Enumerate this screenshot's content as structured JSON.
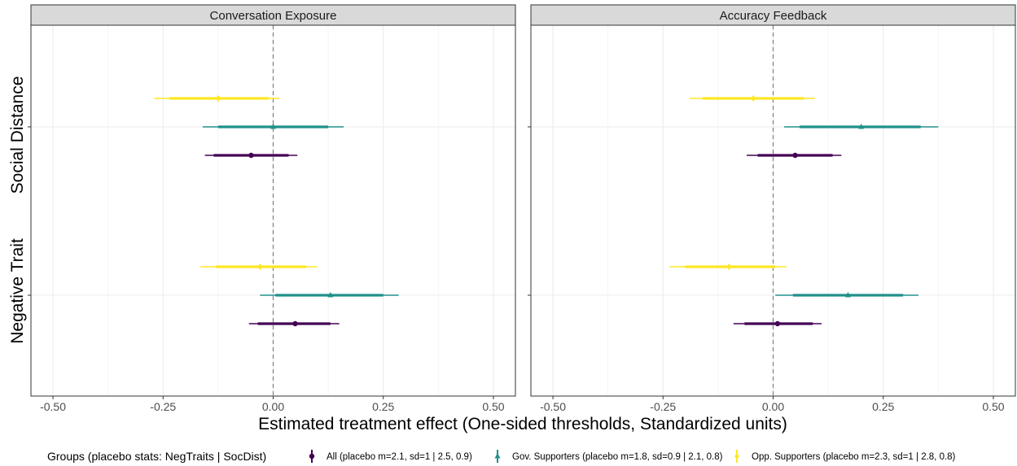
{
  "chart_data": {
    "type": "forest",
    "xlabel": "Estimated treatment effect (One-sided thresholds, Standardized units)",
    "xlim": [
      -0.55,
      0.55
    ],
    "x_ticks": [
      -0.5,
      -0.25,
      0.0,
      0.25,
      0.5
    ],
    "x_tick_labels": [
      "-0.50",
      "-0.25",
      "0.00",
      "0.25",
      "0.50"
    ],
    "reference_line": 0,
    "grid": true,
    "y_categories": [
      "Social Distance",
      "Negative Trait"
    ],
    "legend": {
      "position": "bottom",
      "title": "Groups (placebo stats: NegTraits | SocDist)",
      "entries": [
        {
          "group": "All",
          "label": "All (placebo m=2.1, sd=1 | 2.5, 0.9)",
          "color": "#440154",
          "shape": "circle"
        },
        {
          "group": "Gov",
          "label": "Gov. Supporters (placebo m=1.8, sd=0.9 | 2.1, 0.8)",
          "color": "#21908C",
          "shape": "triangle"
        },
        {
          "group": "Opp",
          "label": "Opp. Supporters (placebo m=2.3, sd=1 | 2.8, 0.8)",
          "color": "#FDE725",
          "shape": "diamond"
        }
      ]
    },
    "panels": [
      {
        "title": "Conversation Exposure",
        "estimates": [
          {
            "outcome": "Social Distance",
            "group": "Opp",
            "est": -0.125,
            "ci90": [
              -0.235,
              -0.01
            ],
            "ci95": [
              -0.27,
              0.015
            ]
          },
          {
            "outcome": "Social Distance",
            "group": "Gov",
            "est": 0.0,
            "ci90": [
              -0.125,
              0.125
            ],
            "ci95": [
              -0.16,
              0.16
            ]
          },
          {
            "outcome": "Social Distance",
            "group": "All",
            "est": -0.05,
            "ci90": [
              -0.135,
              0.035
            ],
            "ci95": [
              -0.155,
              0.055
            ]
          },
          {
            "outcome": "Negative Trait",
            "group": "Opp",
            "est": -0.03,
            "ci90": [
              -0.13,
              0.075
            ],
            "ci95": [
              -0.165,
              0.1
            ]
          },
          {
            "outcome": "Negative Trait",
            "group": "Gov",
            "est": 0.13,
            "ci90": [
              0.005,
              0.25
            ],
            "ci95": [
              -0.03,
              0.285
            ]
          },
          {
            "outcome": "Negative Trait",
            "group": "All",
            "est": 0.05,
            "ci90": [
              -0.035,
              0.13
            ],
            "ci95": [
              -0.055,
              0.15
            ]
          }
        ]
      },
      {
        "title": "Accuracy Feedback",
        "estimates": [
          {
            "outcome": "Social Distance",
            "group": "Opp",
            "est": -0.045,
            "ci90": [
              -0.16,
              0.07
            ],
            "ci95": [
              -0.19,
              0.095
            ]
          },
          {
            "outcome": "Social Distance",
            "group": "Gov",
            "est": 0.2,
            "ci90": [
              0.06,
              0.335
            ],
            "ci95": [
              0.025,
              0.375
            ]
          },
          {
            "outcome": "Social Distance",
            "group": "All",
            "est": 0.05,
            "ci90": [
              -0.035,
              0.135
            ],
            "ci95": [
              -0.06,
              0.155
            ]
          },
          {
            "outcome": "Negative Trait",
            "group": "Opp",
            "est": -0.1,
            "ci90": [
              -0.2,
              0.005
            ],
            "ci95": [
              -0.235,
              0.03
            ]
          },
          {
            "outcome": "Negative Trait",
            "group": "Gov",
            "est": 0.17,
            "ci90": [
              0.045,
              0.295
            ],
            "ci95": [
              0.005,
              0.33
            ]
          },
          {
            "outcome": "Negative Trait",
            "group": "All",
            "est": 0.01,
            "ci90": [
              -0.065,
              0.09
            ],
            "ci95": [
              -0.09,
              0.11
            ]
          }
        ]
      }
    ]
  }
}
